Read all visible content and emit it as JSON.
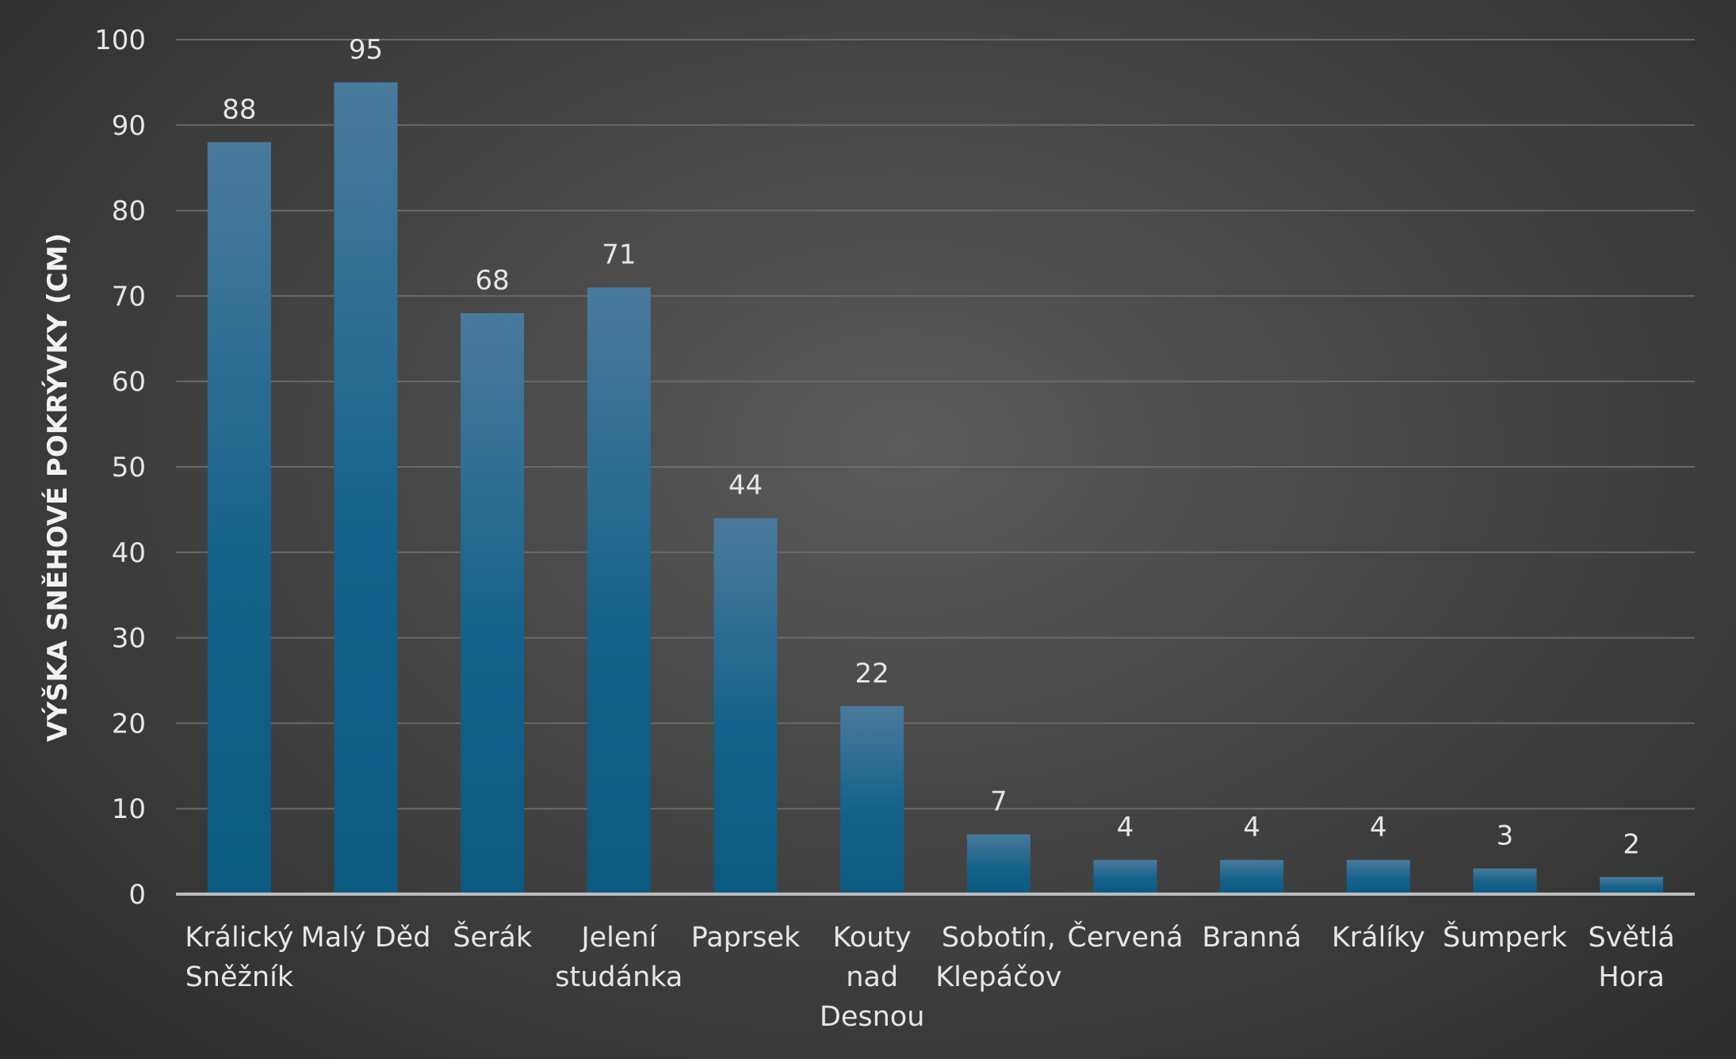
{
  "chart_data": {
    "type": "bar",
    "categories": [
      [
        "Králický",
        "Sněžník"
      ],
      [
        "Malý Děd"
      ],
      [
        "Šerák"
      ],
      [
        "Jelení",
        "studánka"
      ],
      [
        "Paprsek"
      ],
      [
        "Kouty",
        "nad",
        "Desnou"
      ],
      [
        "Sobotín,",
        "Klepáčov"
      ],
      [
        "Červená"
      ],
      [
        "Branná"
      ],
      [
        "Králíky"
      ],
      [
        "Šumperk"
      ],
      [
        "Světlá",
        "Hora"
      ]
    ],
    "values": [
      88,
      95,
      68,
      71,
      44,
      22,
      7,
      4,
      4,
      4,
      3,
      2
    ],
    "ylabel": "VÝŠKA SNĚHOVÉ POKRÝVKY (CM)",
    "ylim": [
      0,
      100
    ],
    "yticks": [
      0,
      10,
      20,
      30,
      40,
      50,
      60,
      70,
      80,
      90,
      100
    ],
    "grid": true,
    "bar_color_top": "#4a7a9c",
    "bar_color_bottom": "#0b5a80"
  }
}
